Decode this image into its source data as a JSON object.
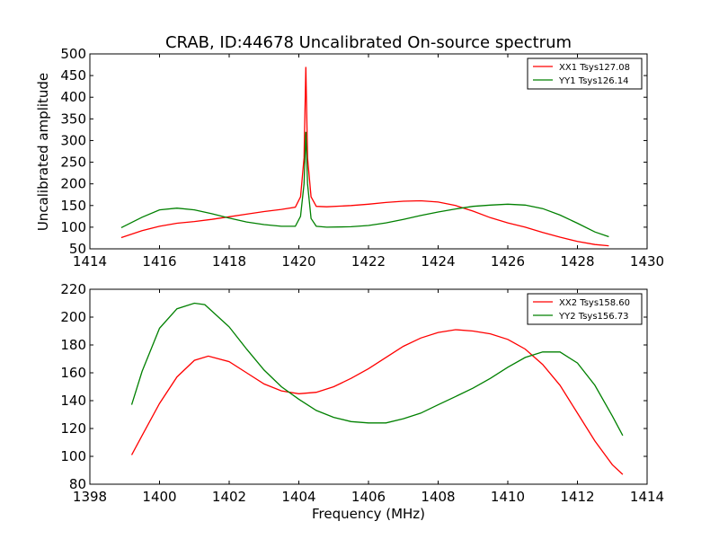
{
  "figure": {
    "title": "CRAB, ID:44678 Uncalibrated On-source spectrum",
    "ylabel": "Uncalibrated amplitude",
    "xlabel": "Frequency (MHz)"
  },
  "chart_data": [
    {
      "type": "line",
      "title": "CRAB, ID:44678 Uncalibrated On-source spectrum",
      "xlabel": "",
      "ylabel": "Uncalibrated amplitude",
      "xlim": [
        1414,
        1430
      ],
      "ylim": [
        50,
        500
      ],
      "xticks": [
        "1414",
        "1416",
        "1418",
        "1420",
        "1422",
        "1424",
        "1426",
        "1428",
        "1430"
      ],
      "yticks": [
        "50",
        "100",
        "150",
        "200",
        "250",
        "300",
        "350",
        "400",
        "450",
        "500"
      ],
      "legend_position": "top-right",
      "grid": false,
      "series": [
        {
          "name": "XX1 Tsys127.08",
          "color": "#ff0000",
          "x": [
            1414.9,
            1415.5,
            1416.0,
            1416.5,
            1417.0,
            1417.5,
            1418.0,
            1418.5,
            1419.0,
            1419.5,
            1419.9,
            1420.05,
            1420.15,
            1420.2,
            1420.25,
            1420.35,
            1420.5,
            1420.8,
            1421.5,
            1422.0,
            1422.5,
            1423.0,
            1423.5,
            1424.0,
            1424.5,
            1425.0,
            1425.5,
            1426.0,
            1426.5,
            1427.0,
            1427.5,
            1428.0,
            1428.5,
            1428.9
          ],
          "y": [
            76,
            92,
            102,
            109,
            113,
            118,
            124,
            130,
            136,
            141,
            146,
            170,
            260,
            470,
            260,
            170,
            148,
            147,
            150,
            153,
            157,
            160,
            161,
            158,
            150,
            137,
            122,
            110,
            100,
            88,
            77,
            67,
            60,
            57
          ]
        },
        {
          "name": "YY1 Tsys126.14",
          "color": "#008000",
          "x": [
            1414.9,
            1415.5,
            1416.0,
            1416.5,
            1417.0,
            1417.5,
            1418.0,
            1418.5,
            1419.0,
            1419.5,
            1419.9,
            1420.05,
            1420.15,
            1420.2,
            1420.25,
            1420.35,
            1420.5,
            1420.8,
            1421.5,
            1422.0,
            1422.5,
            1423.0,
            1423.5,
            1424.0,
            1424.5,
            1425.0,
            1425.5,
            1426.0,
            1426.5,
            1427.0,
            1427.5,
            1428.0,
            1428.5,
            1428.9
          ],
          "y": [
            99,
            123,
            140,
            144,
            140,
            131,
            121,
            112,
            106,
            102,
            102,
            125,
            200,
            320,
            200,
            120,
            102,
            100,
            101,
            104,
            110,
            118,
            127,
            135,
            142,
            148,
            151,
            153,
            151,
            143,
            128,
            109,
            89,
            78
          ]
        }
      ]
    },
    {
      "type": "line",
      "title": "",
      "xlabel": "Frequency (MHz)",
      "ylabel": "",
      "xlim": [
        1398,
        1414
      ],
      "ylim": [
        80,
        220
      ],
      "xticks": [
        "1398",
        "1400",
        "1402",
        "1404",
        "1406",
        "1408",
        "1410",
        "1412",
        "1414"
      ],
      "yticks": [
        "80",
        "100",
        "120",
        "140",
        "160",
        "180",
        "200",
        "220"
      ],
      "legend_position": "top-right",
      "grid": false,
      "series": [
        {
          "name": "XX2 Tsys158.60",
          "color": "#ff0000",
          "x": [
            1399.2,
            1399.5,
            1400.0,
            1400.5,
            1401.0,
            1401.4,
            1402.0,
            1402.5,
            1403.0,
            1403.5,
            1404.0,
            1404.5,
            1405.0,
            1405.5,
            1406.0,
            1406.5,
            1407.0,
            1407.5,
            1408.0,
            1408.5,
            1409.0,
            1409.5,
            1410.0,
            1410.5,
            1411.0,
            1411.5,
            1412.0,
            1412.5,
            1413.0,
            1413.3
          ],
          "y": [
            101,
            115,
            138,
            157,
            169,
            172,
            168,
            160,
            152,
            147,
            145,
            146,
            150,
            156,
            163,
            171,
            179,
            185,
            189,
            191,
            190,
            188,
            184,
            177,
            166,
            151,
            131,
            111,
            94,
            87
          ]
        },
        {
          "name": "YY2 Tsys156.73",
          "color": "#008000",
          "x": [
            1399.2,
            1399.5,
            1400.0,
            1400.5,
            1401.0,
            1401.3,
            1402.0,
            1402.5,
            1403.0,
            1403.5,
            1404.0,
            1404.5,
            1405.0,
            1405.5,
            1406.0,
            1406.5,
            1407.0,
            1407.5,
            1408.0,
            1408.5,
            1409.0,
            1409.5,
            1410.0,
            1410.5,
            1411.0,
            1411.5,
            1412.0,
            1412.5,
            1413.0,
            1413.3
          ],
          "y": [
            137,
            161,
            192,
            206,
            210,
            209,
            193,
            177,
            162,
            150,
            141,
            133,
            128,
            125,
            124,
            124,
            127,
            131,
            137,
            143,
            149,
            156,
            164,
            171,
            175,
            175,
            167,
            151,
            129,
            115
          ]
        }
      ]
    }
  ]
}
